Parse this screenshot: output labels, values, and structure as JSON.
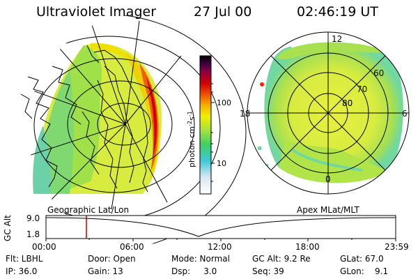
{
  "header": {
    "instrument": "Ultraviolet Imager",
    "date": "27 Jul 00",
    "time": "02:46:19 UT"
  },
  "colorbar": {
    "label": "photon cm",
    "label_exp1": "-2",
    "label_mid": "s",
    "label_exp2": "-1",
    "ticks": [
      "100",
      "10"
    ],
    "scale": "log",
    "colors": [
      "#ffffff",
      "#d8e8f0",
      "#3ec8d8",
      "#40d060",
      "#a8e040",
      "#f0f000",
      "#f8b000",
      "#f05000",
      "#d00000",
      "#900040",
      "#400040",
      "#000000"
    ]
  },
  "polar_plot": {
    "mlt_labels": [
      "12",
      "18",
      "6",
      "0"
    ],
    "mlat_labels": [
      "60",
      "70",
      "80"
    ]
  },
  "panel_labels": {
    "left": "Geographic Lat/Lon",
    "right": "Apex MLat/MLT"
  },
  "timeline": {
    "axis_label": "GC Alt",
    "y_ticks": [
      "9.0",
      "1.8"
    ],
    "x_ticks": [
      "00:00",
      "06:00",
      "12:00",
      "18:00",
      "23:59"
    ],
    "current_time_hours": 2.77
  },
  "info": {
    "flt": "Flt: LBHL",
    "door": "Door: Open",
    "mode": "Mode: Normal",
    "gc_alt": "GC Alt: 9.2 Re",
    "glat": "GLat:  67.0",
    "ip": "IP: 36.0",
    "gain": "Gain: 13",
    "dsp": "Dsp:     3.0",
    "seq": "Seq: 39",
    "glon": "GLon:    9.1"
  }
}
